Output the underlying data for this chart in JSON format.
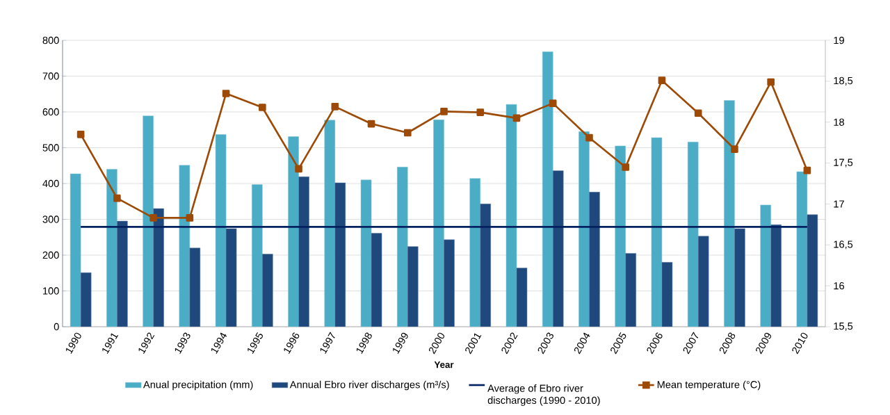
{
  "chart_data": {
    "type": "bar",
    "xlabel": "Year",
    "categories": [
      "1990",
      "1991",
      "1992",
      "1993",
      "1994",
      "1995",
      "1996",
      "1997",
      "1998",
      "1999",
      "2000",
      "2001",
      "2002",
      "2003",
      "2004",
      "2005",
      "2006",
      "2007",
      "2008",
      "2009",
      "2010"
    ],
    "series": [
      {
        "name": "Anual precipitation (mm)",
        "color": "#4bacc6",
        "values": [
          427,
          440,
          589,
          451,
          537,
          397,
          531,
          577,
          410,
          446,
          578,
          414,
          621,
          768,
          545,
          505,
          528,
          516,
          632,
          340,
          433
        ]
      },
      {
        "name": "Annual Ebro river discharges (m³/s)",
        "color": "#1f497d",
        "values": [
          151,
          295,
          330,
          220,
          274,
          203,
          419,
          402,
          261,
          224,
          243,
          343,
          164,
          436,
          376,
          205,
          180,
          253,
          274,
          285,
          313
        ]
      },
      {
        "name": "Mean temperature (°C)",
        "type": "line",
        "axis": "y2",
        "marker": "square",
        "color": "#9c4a06",
        "values": [
          17.85,
          17.07,
          16.83,
          16.83,
          18.35,
          18.18,
          17.43,
          18.19,
          17.98,
          17.87,
          18.13,
          18.12,
          18.05,
          18.23,
          17.81,
          17.45,
          18.51,
          18.11,
          17.67,
          18.49,
          17.41
        ]
      }
    ],
    "ref_lines": [
      {
        "axis": "y",
        "value": 279,
        "label": "Average of Ebro river discharges (1990 - 2010)",
        "color": "#002060"
      }
    ],
    "ylim": [
      0,
      800
    ],
    "yticks": [
      0,
      100,
      200,
      300,
      400,
      500,
      600,
      700,
      800
    ],
    "y2lim": [
      15.5,
      19
    ],
    "y2ticks": [
      {
        "value": 15.5,
        "label": "15,5"
      },
      16,
      {
        "value": 16.5,
        "label": "16,5"
      },
      17,
      {
        "value": 17.5,
        "label": "17,5"
      },
      18,
      {
        "value": 18.5,
        "label": "18,5"
      },
      19
    ],
    "grid": "y",
    "legend": "bottom"
  }
}
